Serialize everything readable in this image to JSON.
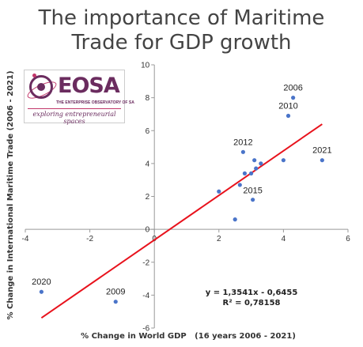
{
  "colors": {
    "points": "#4a74c9",
    "trendline": "#e8121c",
    "axis": "#999999",
    "logo": "#6b2c5f"
  },
  "logo": {
    "wordmark": "EOSA",
    "subtitle": "THE ENTERPRISE OBSERVATORY OF SA",
    "tagline": "exploring entrepreneurial spaces"
  },
  "chart_data": {
    "type": "scatter",
    "title": [
      "The importance of Maritime",
      "Trade for GDP growth"
    ],
    "xlabel": "% Change in World GDP   (16 years 2006 - 2021)",
    "ylabel": "% Change in International Maritime Trade (2006 - 2021)",
    "xlim": [
      -4,
      6
    ],
    "ylim": [
      -6,
      10
    ],
    "x_ticks": [
      -4,
      -2,
      0,
      2,
      4,
      6
    ],
    "y_ticks": [
      -6,
      -4,
      -2,
      0,
      2,
      4,
      6,
      8,
      10
    ],
    "points": [
      {
        "x": -3.5,
        "y": -3.8,
        "label": "2020"
      },
      {
        "x": -1.2,
        "y": -4.4,
        "label": "2009"
      },
      {
        "x": 2.0,
        "y": 2.3,
        "label": ""
      },
      {
        "x": 2.5,
        "y": 0.6,
        "label": ""
      },
      {
        "x": 2.65,
        "y": 2.7,
        "label": ""
      },
      {
        "x": 2.75,
        "y": 4.7,
        "label": "2012"
      },
      {
        "x": 2.8,
        "y": 3.4,
        "label": ""
      },
      {
        "x": 3.0,
        "y": 3.4,
        "label": ""
      },
      {
        "x": 3.05,
        "y": 1.8,
        "label": "2015"
      },
      {
        "x": 3.1,
        "y": 4.2,
        "label": ""
      },
      {
        "x": 3.15,
        "y": 3.7,
        "label": ""
      },
      {
        "x": 3.3,
        "y": 4.0,
        "label": ""
      },
      {
        "x": 4.0,
        "y": 4.2,
        "label": ""
      },
      {
        "x": 4.15,
        "y": 6.9,
        "label": "2010"
      },
      {
        "x": 4.3,
        "y": 8.0,
        "label": "2006"
      },
      {
        "x": 5.2,
        "y": 4.2,
        "label": "2021"
      }
    ],
    "trendline": {
      "equation": "y = 1,3541x - 0,6455",
      "r_squared": "R² = 0,78158",
      "slope": 1.3541,
      "intercept": -0.6455,
      "x_range": [
        -3.5,
        5.2
      ]
    },
    "grid": false,
    "legend": "none"
  }
}
